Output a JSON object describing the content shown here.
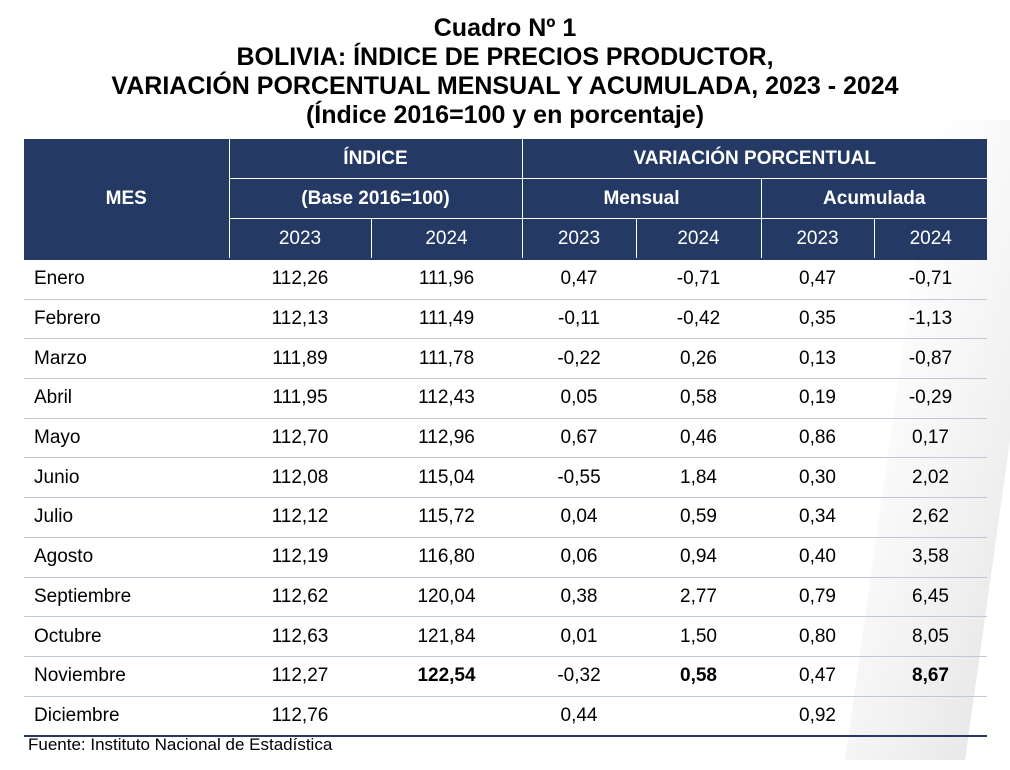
{
  "title": {
    "line1": "Cuadro Nº 1",
    "line2": "BOLIVIA: ÍNDICE DE PRECIOS PRODUCTOR,",
    "line3": "VARIACIÓN PORCENTUAL MENSUAL Y ACUMULADA, 2023 - 2024",
    "line4": "(Índice 2016=100 y en porcentaje)"
  },
  "header": {
    "mes": "MES",
    "indice": "ÍNDICE",
    "base": "(Base 2016=100)",
    "variacion": "VARIACIÓN PORCENTUAL",
    "mensual": "Mensual",
    "acumulada": "Acumulada",
    "years": [
      "2023",
      "2024",
      "2023",
      "2024",
      "2023",
      "2024"
    ]
  },
  "rows": [
    {
      "mes": "Enero",
      "i2023": "112,26",
      "i2024": "111,96",
      "m2023": "0,47",
      "m2024": "-0,71",
      "a2023": "0,47",
      "a2024": "-0,71"
    },
    {
      "mes": "Febrero",
      "i2023": "112,13",
      "i2024": "111,49",
      "m2023": "-0,11",
      "m2024": "-0,42",
      "a2023": "0,35",
      "a2024": "-1,13"
    },
    {
      "mes": "Marzo",
      "i2023": "111,89",
      "i2024": "111,78",
      "m2023": "-0,22",
      "m2024": "0,26",
      "a2023": "0,13",
      "a2024": "-0,87"
    },
    {
      "mes": "Abril",
      "i2023": "111,95",
      "i2024": "112,43",
      "m2023": "0,05",
      "m2024": "0,58",
      "a2023": "0,19",
      "a2024": "-0,29"
    },
    {
      "mes": "Mayo",
      "i2023": "112,70",
      "i2024": "112,96",
      "m2023": "0,67",
      "m2024": "0,46",
      "a2023": "0,86",
      "a2024": "0,17"
    },
    {
      "mes": "Junio",
      "i2023": "112,08",
      "i2024": "115,04",
      "m2023": "-0,55",
      "m2024": "1,84",
      "a2023": "0,30",
      "a2024": "2,02"
    },
    {
      "mes": "Julio",
      "i2023": "112,12",
      "i2024": "115,72",
      "m2023": "0,04",
      "m2024": "0,59",
      "a2023": "0,34",
      "a2024": "2,62"
    },
    {
      "mes": "Agosto",
      "i2023": "112,19",
      "i2024": "116,80",
      "m2023": "0,06",
      "m2024": "0,94",
      "a2023": "0,40",
      "a2024": "3,58"
    },
    {
      "mes": "Septiembre",
      "i2023": "112,62",
      "i2024": "120,04",
      "m2023": "0,38",
      "m2024": "2,77",
      "a2023": "0,79",
      "a2024": "6,45"
    },
    {
      "mes": "Octubre",
      "i2023": "112,63",
      "i2024": "121,84",
      "m2023": "0,01",
      "m2024": "1,50",
      "a2023": "0,80",
      "a2024": "8,05"
    },
    {
      "mes": "Noviembre",
      "i2023": "112,27",
      "i2024": "122,54",
      "m2023": "-0,32",
      "m2024": "0,58",
      "a2023": "0,47",
      "a2024": "8,67"
    },
    {
      "mes": "Diciembre",
      "i2023": "112,76",
      "i2024": "",
      "m2023": "0,44",
      "m2024": "",
      "a2023": "0,92",
      "a2024": ""
    }
  ],
  "source": "Fuente: Instituto Nacional de Estadística",
  "colors": {
    "header_bg": "#243a65",
    "header_text": "#ffffff"
  }
}
